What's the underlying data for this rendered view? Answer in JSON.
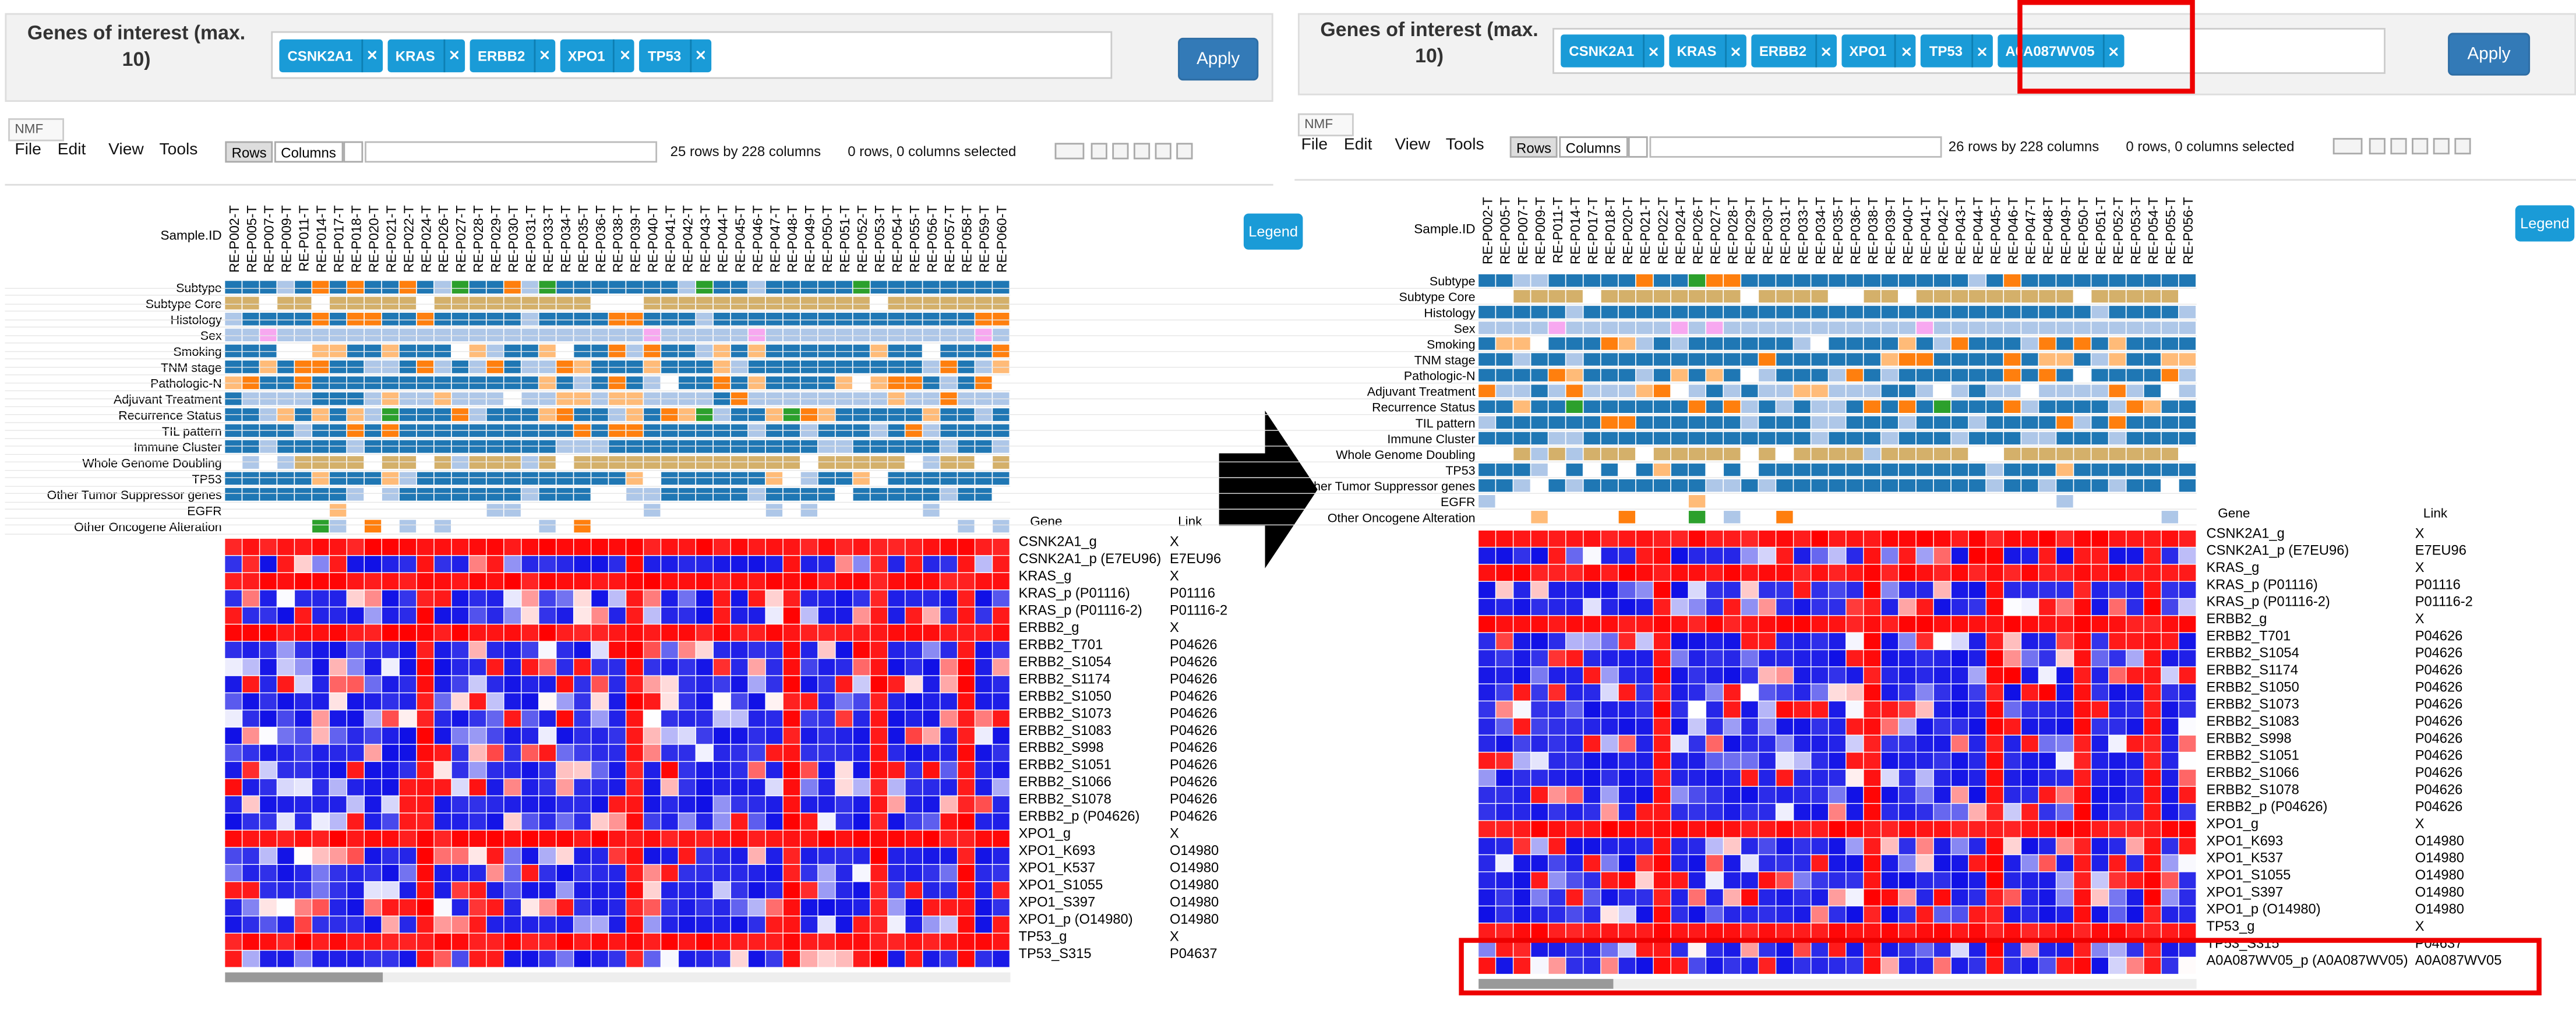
{
  "samples": [
    "RE-P002-T",
    "RE-P005-T",
    "RE-P007-T",
    "RE-P009-T",
    "RE-P011-T",
    "RE-P014-T",
    "RE-P017-T",
    "RE-P018-T",
    "RE-P020-T",
    "RE-P021-T",
    "RE-P022-T",
    "RE-P024-T",
    "RE-P026-T",
    "RE-P027-T",
    "RE-P028-T",
    "RE-P029-T",
    "RE-P030-T",
    "RE-P031-T",
    "RE-P033-T",
    "RE-P034-T",
    "RE-P035-T",
    "RE-P036-T",
    "RE-P038-T",
    "RE-P039-T",
    "RE-P040-T",
    "RE-P041-T",
    "RE-P042-T",
    "RE-P043-T",
    "RE-P044-T",
    "RE-P045-T",
    "RE-P046-T",
    "RE-P047-T",
    "RE-P048-T",
    "RE-P049-T",
    "RE-P050-T",
    "RE-P051-T",
    "RE-P052-T",
    "RE-P053-T",
    "RE-P054-T",
    "RE-P055-T",
    "RE-P056-T",
    "RE-P057-T",
    "RE-P058-T",
    "RE-P059-T",
    "RE-P060-T"
  ],
  "annotations": [
    "Subtype",
    "Subtype Core",
    "Histology",
    "Sex",
    "Smoking",
    "TNM stage",
    "Pathologic-N",
    "Adjuvant Treatment",
    "Recurrence Status",
    "TIL pattern",
    "Immune Cluster",
    "Whole Genome Doubling",
    "TP53",
    "Other Tumor Suppressor genes",
    "EGFR",
    "Other Oncogene Alteration"
  ],
  "panels": [
    {
      "filter_label": "Genes of interest (max. 10)",
      "genes": [
        "CSNK2A1",
        "KRAS",
        "ERBB2",
        "XPO1",
        "TP53"
      ],
      "apply": "Apply",
      "tab": "NMF",
      "menu": [
        "File",
        "Edit",
        "View",
        "Tools"
      ],
      "rows_button": "Rows",
      "columns_button": "Columns",
      "row_info": "25 rows by 228 columns",
      "selection_info": "0 rows, 0 columns selected",
      "sample_header": "Sample.ID",
      "legend": "Legend",
      "table_header": [
        "Gene",
        "Link"
      ],
      "rows": [
        [
          "CSNK2A1_g",
          "X"
        ],
        [
          "CSNK2A1_p (E7EU96)",
          "E7EU96"
        ],
        [
          "KRAS_g",
          "X"
        ],
        [
          "KRAS_p (P01116)",
          "P01116"
        ],
        [
          "KRAS_p (P01116-2)",
          "P01116-2"
        ],
        [
          "ERBB2_g",
          "X"
        ],
        [
          "ERBB2_T701",
          "P04626"
        ],
        [
          "ERBB2_S1054",
          "P04626"
        ],
        [
          "ERBB2_S1174",
          "P04626"
        ],
        [
          "ERBB2_S1050",
          "P04626"
        ],
        [
          "ERBB2_S1073",
          "P04626"
        ],
        [
          "ERBB2_S1083",
          "P04626"
        ],
        [
          "ERBB2_S998",
          "P04626"
        ],
        [
          "ERBB2_S1051",
          "P04626"
        ],
        [
          "ERBB2_S1066",
          "P04626"
        ],
        [
          "ERBB2_S1078",
          "P04626"
        ],
        [
          "ERBB2_p (P04626)",
          "P04626"
        ],
        [
          "XPO1_g",
          "X"
        ],
        [
          "XPO1_K693",
          "O14980"
        ],
        [
          "XPO1_K537",
          "O14980"
        ],
        [
          "XPO1_S1055",
          "O14980"
        ],
        [
          "XPO1_S397",
          "O14980"
        ],
        [
          "XPO1_p (O14980)",
          "O14980"
        ],
        [
          "TP53_g",
          "X"
        ],
        [
          "TP53_S315",
          "P04637"
        ]
      ]
    },
    {
      "filter_label": "Genes of interest (max. 10)",
      "genes": [
        "CSNK2A1",
        "KRAS",
        "ERBB2",
        "XPO1",
        "TP53",
        "A0A087WV05"
      ],
      "apply": "Apply",
      "tab": "NMF",
      "menu": [
        "File",
        "Edit",
        "View",
        "Tools"
      ],
      "rows_button": "Rows",
      "columns_button": "Columns",
      "row_info": "26 rows by 228 columns",
      "selection_info": "0 rows, 0 columns selected",
      "sample_header": "Sample.ID",
      "legend": "Legend",
      "table_header": [
        "Gene",
        "Link"
      ],
      "rows": [
        [
          "CSNK2A1_g",
          "X"
        ],
        [
          "CSNK2A1_p (E7EU96)",
          "E7EU96"
        ],
        [
          "KRAS_g",
          "X"
        ],
        [
          "KRAS_p (P01116)",
          "P01116"
        ],
        [
          "KRAS_p (P01116-2)",
          "P01116-2"
        ],
        [
          "ERBB2_g",
          "X"
        ],
        [
          "ERBB2_T701",
          "P04626"
        ],
        [
          "ERBB2_S1054",
          "P04626"
        ],
        [
          "ERBB2_S1174",
          "P04626"
        ],
        [
          "ERBB2_S1050",
          "P04626"
        ],
        [
          "ERBB2_S1073",
          "P04626"
        ],
        [
          "ERBB2_S1083",
          "P04626"
        ],
        [
          "ERBB2_S998",
          "P04626"
        ],
        [
          "ERBB2_S1051",
          "P04626"
        ],
        [
          "ERBB2_S1066",
          "P04626"
        ],
        [
          "ERBB2_S1078",
          "P04626"
        ],
        [
          "ERBB2_p (P04626)",
          "P04626"
        ],
        [
          "XPO1_g",
          "X"
        ],
        [
          "XPO1_K693",
          "O14980"
        ],
        [
          "XPO1_K537",
          "O14980"
        ],
        [
          "XPO1_S1055",
          "O14980"
        ],
        [
          "XPO1_S397",
          "O14980"
        ],
        [
          "XPO1_p (O14980)",
          "O14980"
        ],
        [
          "TP53_g",
          "X"
        ],
        [
          "TP53_S315",
          "P04637"
        ],
        [
          "A0A087WV05_p (A0A087WV05)",
          "A0A087WV05"
        ]
      ]
    }
  ]
}
